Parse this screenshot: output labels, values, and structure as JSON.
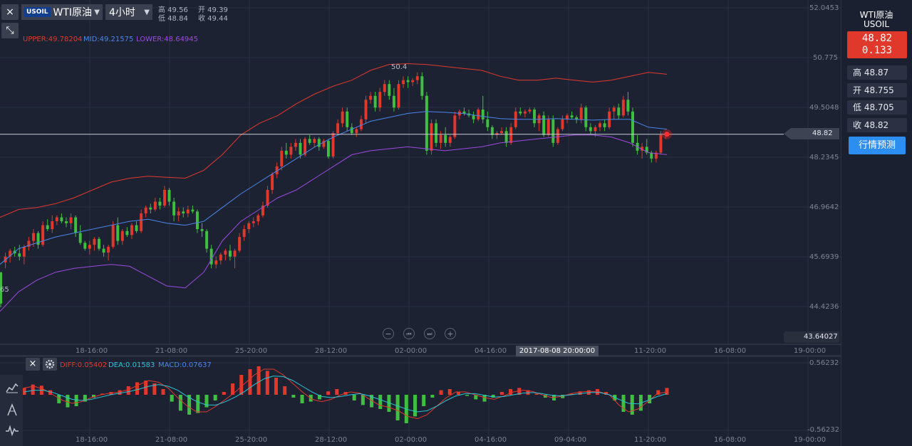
{
  "toolbar": {
    "close_label": "×",
    "shrink_label": "⤡",
    "symbol_badge": "USOIL",
    "symbol_name": "WTI原油",
    "period_label": "4小时",
    "dropdown_caret": "▼",
    "high": "高 49.56",
    "low": "低 48.84",
    "open": "开 49.39",
    "close": "收 49.44"
  },
  "indicator": {
    "upper": "UPPER:49.78204",
    "mid": "MID:49.21575",
    "lower": "LOWER:48.64945",
    "upper_color": "#e0392c",
    "mid_color": "#4a86e8",
    "lower_color": "#9b4ae0"
  },
  "right_panel": {
    "title": "WTI原油",
    "symbol": "USOIL",
    "price": "48.82",
    "change": "0.133",
    "high": "高 48.87",
    "open": "开 48.755",
    "low": "低 48.705",
    "close": "收 48.82",
    "predict_button": "行情预测"
  },
  "price_axis": {
    "labels": [
      "52.0453",
      "50.775",
      "49.5048",
      "48.2345",
      "46.9642",
      "45.6939",
      "44.4236"
    ],
    "current_price": "48.82",
    "bottom_value": "43.64027",
    "max_label": "50.4",
    "left_cut_label": "65"
  },
  "time_axis": {
    "labels": [
      "18-16:00",
      "21-08:00",
      "25-20:00",
      "28-12:00",
      "02-00:00",
      "04-16:00",
      "09-04:00",
      "11-20:00",
      "16-08:00",
      "19-00:00"
    ],
    "crosshair_time": "2017-08-08 20:00:00"
  },
  "navigation": {
    "zoom_out": "−",
    "prev": "⏮",
    "next": "⏭",
    "zoom_in": "+"
  },
  "macd": {
    "close_label": "×",
    "settings_icon": "gear-icon",
    "diff": "DIFF:0.05402",
    "dea": "DEA:0.01583",
    "macd": "MACD:0.07637",
    "diff_color": "#e0392c",
    "dea_color": "#2bc4d4",
    "macd_color": "#4a86e8",
    "top_value": "0.56232",
    "bottom_value": "-0.56232"
  },
  "side_tools": {
    "chart_icon": "chart-icon",
    "draw_icon": "draw-icon",
    "indicator_icon": "indicator-icon"
  },
  "chart_data": {
    "type": "candlestick",
    "up_color": "#e0392c",
    "down_color": "#3fbf3f",
    "ylim": [
      43.64027,
      52.0453
    ],
    "y_ticks": [
      52.0453,
      50.775,
      49.5048,
      48.2345,
      46.9642,
      45.6939,
      44.4236
    ],
    "x_tick_labels": [
      "18-16:00",
      "21-08:00",
      "25-20:00",
      "28-12:00",
      "02-00:00",
      "04-16:00",
      "09-04:00",
      "11-20:00",
      "16-08:00",
      "19-00:00"
    ],
    "current_price": 48.82,
    "max_price": 50.4,
    "ohlc": [
      [
        45.3,
        45.3,
        44.4,
        44.5
      ],
      [
        45.55,
        45.8,
        45.4,
        45.7
      ],
      [
        45.7,
        45.9,
        45.55,
        45.85
      ],
      [
        45.85,
        45.95,
        45.7,
        45.78
      ],
      [
        45.78,
        46.0,
        45.6,
        45.7
      ],
      [
        45.7,
        46.0,
        45.5,
        45.95
      ],
      [
        45.95,
        46.2,
        45.85,
        46.1
      ],
      [
        46.1,
        46.4,
        45.95,
        46.3
      ],
      [
        46.3,
        46.35,
        45.9,
        46.0
      ],
      [
        46.0,
        46.6,
        45.95,
        46.5
      ],
      [
        46.5,
        46.65,
        46.35,
        46.4
      ],
      [
        46.4,
        46.75,
        46.3,
        46.6
      ],
      [
        46.6,
        46.75,
        46.5,
        46.7
      ],
      [
        46.7,
        46.8,
        46.55,
        46.6
      ],
      [
        46.6,
        46.7,
        46.45,
        46.55
      ],
      [
        46.55,
        46.8,
        46.4,
        46.7
      ],
      [
        46.7,
        46.75,
        46.2,
        46.3
      ],
      [
        46.3,
        46.5,
        46.0,
        46.05
      ],
      [
        46.05,
        46.1,
        45.85,
        45.9
      ],
      [
        45.9,
        46.1,
        45.75,
        46.0
      ],
      [
        46.0,
        46.2,
        45.85,
        46.15
      ],
      [
        46.15,
        46.2,
        45.85,
        45.9
      ],
      [
        45.9,
        46.0,
        45.7,
        45.8
      ],
      [
        45.8,
        46.0,
        45.6,
        45.95
      ],
      [
        45.95,
        46.6,
        45.9,
        46.5
      ],
      [
        46.5,
        46.7,
        46.0,
        46.1
      ],
      [
        46.1,
        46.4,
        46.0,
        46.35
      ],
      [
        46.35,
        46.45,
        46.2,
        46.25
      ],
      [
        46.25,
        46.55,
        46.15,
        46.5
      ],
      [
        46.5,
        46.6,
        46.3,
        46.35
      ],
      [
        46.35,
        46.9,
        46.3,
        46.8
      ],
      [
        46.8,
        47.0,
        46.7,
        46.95
      ],
      [
        46.95,
        47.05,
        46.8,
        46.9
      ],
      [
        46.9,
        47.2,
        46.85,
        47.1
      ],
      [
        47.1,
        47.2,
        46.9,
        47.0
      ],
      [
        47.0,
        47.5,
        46.95,
        47.4
      ],
      [
        47.4,
        47.45,
        47.0,
        47.1
      ],
      [
        47.1,
        47.2,
        46.6,
        46.75
      ],
      [
        46.75,
        46.95,
        46.6,
        46.85
      ],
      [
        46.85,
        46.95,
        46.7,
        46.8
      ],
      [
        46.8,
        47.0,
        46.7,
        46.9
      ],
      [
        46.9,
        47.0,
        46.8,
        46.85
      ],
      [
        46.85,
        46.9,
        46.3,
        46.4
      ],
      [
        46.4,
        46.55,
        46.2,
        46.35
      ],
      [
        46.35,
        46.4,
        45.8,
        45.9
      ],
      [
        45.9,
        46.0,
        45.4,
        45.5
      ],
      [
        45.5,
        45.7,
        45.4,
        45.6
      ],
      [
        45.6,
        45.8,
        45.5,
        45.75
      ],
      [
        45.75,
        45.9,
        45.6,
        45.85
      ],
      [
        45.85,
        46.0,
        45.6,
        45.7
      ],
      [
        45.7,
        45.9,
        45.4,
        45.85
      ],
      [
        45.85,
        46.3,
        45.8,
        46.2
      ],
      [
        46.2,
        46.5,
        46.1,
        46.4
      ],
      [
        46.4,
        46.6,
        46.3,
        46.55
      ],
      [
        46.55,
        46.7,
        46.45,
        46.6
      ],
      [
        46.6,
        46.8,
        46.5,
        46.75
      ],
      [
        46.75,
        47.1,
        46.7,
        47.0
      ],
      [
        47.0,
        47.5,
        46.95,
        47.4
      ],
      [
        47.4,
        47.85,
        47.3,
        47.8
      ],
      [
        47.8,
        48.1,
        47.7,
        48.0
      ],
      [
        48.0,
        48.5,
        47.9,
        48.4
      ],
      [
        48.4,
        48.6,
        48.2,
        48.3
      ],
      [
        48.3,
        48.6,
        48.2,
        48.5
      ],
      [
        48.5,
        48.7,
        48.4,
        48.6
      ],
      [
        48.6,
        48.7,
        48.2,
        48.3
      ],
      [
        48.3,
        48.75,
        48.25,
        48.7
      ],
      [
        48.7,
        48.8,
        48.55,
        48.6
      ],
      [
        48.6,
        48.75,
        48.5,
        48.7
      ],
      [
        48.7,
        48.75,
        48.4,
        48.5
      ],
      [
        48.5,
        48.7,
        48.45,
        48.65
      ],
      [
        48.65,
        48.7,
        48.2,
        48.25
      ],
      [
        48.25,
        48.9,
        48.2,
        48.85
      ],
      [
        48.85,
        49.2,
        48.8,
        49.1
      ],
      [
        49.1,
        49.5,
        49.0,
        49.4
      ],
      [
        49.4,
        49.5,
        48.9,
        49.0
      ],
      [
        49.0,
        49.1,
        48.8,
        48.85
      ],
      [
        48.85,
        49.0,
        48.75,
        48.95
      ],
      [
        48.95,
        49.3,
        48.9,
        49.2
      ],
      [
        49.2,
        49.8,
        49.1,
        49.7
      ],
      [
        49.7,
        49.9,
        49.6,
        49.8
      ],
      [
        49.8,
        49.9,
        49.4,
        49.5
      ],
      [
        49.5,
        50.0,
        49.4,
        49.9
      ],
      [
        49.9,
        50.2,
        49.8,
        50.1
      ],
      [
        50.1,
        50.2,
        49.7,
        49.8
      ],
      [
        49.8,
        50.0,
        49.4,
        49.5
      ],
      [
        49.5,
        50.2,
        49.45,
        50.1
      ],
      [
        50.1,
        50.3,
        50.0,
        50.2
      ],
      [
        50.2,
        50.3,
        50.0,
        50.15
      ],
      [
        50.15,
        50.25,
        50.05,
        50.2
      ],
      [
        50.2,
        50.4,
        50.1,
        50.3
      ],
      [
        50.3,
        50.4,
        49.7,
        49.8
      ],
      [
        49.8,
        49.9,
        48.3,
        48.4
      ],
      [
        48.4,
        49.2,
        48.3,
        49.1
      ],
      [
        49.1,
        49.2,
        48.5,
        48.6
      ],
      [
        48.6,
        48.9,
        48.45,
        48.8
      ],
      [
        48.8,
        49.0,
        48.5,
        48.6
      ],
      [
        48.6,
        48.8,
        48.5,
        48.75
      ],
      [
        48.75,
        49.4,
        48.7,
        49.3
      ],
      [
        49.3,
        49.45,
        49.2,
        49.4
      ],
      [
        49.4,
        49.5,
        49.3,
        49.35
      ],
      [
        49.35,
        49.45,
        49.25,
        49.3
      ],
      [
        49.3,
        49.4,
        49.1,
        49.2
      ],
      [
        49.2,
        49.5,
        49.15,
        49.45
      ],
      [
        49.45,
        49.8,
        49.1,
        49.2
      ],
      [
        49.2,
        49.4,
        48.9,
        49.0
      ],
      [
        49.0,
        49.05,
        48.7,
        48.8
      ],
      [
        48.8,
        48.9,
        48.7,
        48.85
      ],
      [
        48.85,
        49.0,
        48.8,
        48.9
      ],
      [
        48.9,
        49.0,
        48.5,
        48.6
      ],
      [
        48.6,
        49.1,
        48.55,
        49.0
      ],
      [
        49.0,
        49.5,
        48.95,
        49.4
      ],
      [
        49.4,
        49.5,
        49.3,
        49.35
      ],
      [
        49.35,
        49.45,
        49.25,
        49.4
      ],
      [
        49.4,
        49.5,
        49.35,
        49.45
      ],
      [
        49.45,
        49.5,
        49.0,
        49.1
      ],
      [
        49.1,
        49.35,
        48.9,
        49.3
      ],
      [
        49.3,
        49.4,
        48.75,
        48.8
      ],
      [
        48.8,
        49.3,
        48.75,
        49.2
      ],
      [
        49.2,
        49.3,
        48.5,
        48.6
      ],
      [
        48.6,
        49.0,
        48.55,
        48.95
      ],
      [
        48.95,
        49.3,
        48.9,
        49.2
      ],
      [
        49.2,
        49.35,
        49.1,
        49.3
      ],
      [
        49.3,
        49.4,
        49.2,
        49.25
      ],
      [
        49.25,
        49.3,
        49.1,
        49.2
      ],
      [
        49.2,
        49.6,
        49.1,
        49.5
      ],
      [
        49.5,
        49.55,
        48.9,
        49.0
      ],
      [
        49.0,
        49.1,
        48.8,
        48.9
      ],
      [
        48.9,
        49.05,
        48.75,
        49.0
      ],
      [
        49.0,
        49.15,
        48.9,
        49.1
      ],
      [
        49.1,
        49.2,
        48.9,
        49.0
      ],
      [
        49.0,
        49.5,
        48.95,
        49.4
      ],
      [
        49.4,
        49.55,
        49.2,
        49.5
      ],
      [
        49.5,
        49.6,
        49.2,
        49.3
      ],
      [
        49.3,
        49.8,
        49.25,
        49.7
      ],
      [
        49.7,
        49.9,
        49.3,
        49.4
      ],
      [
        49.4,
        49.5,
        48.5,
        48.6
      ],
      [
        48.6,
        48.8,
        48.3,
        48.4
      ],
      [
        48.4,
        48.6,
        48.2,
        48.5
      ],
      [
        48.5,
        48.7,
        48.3,
        48.35
      ],
      [
        48.35,
        48.4,
        48.1,
        48.2
      ],
      [
        48.2,
        48.4,
        48.1,
        48.35
      ],
      [
        48.35,
        48.9,
        48.3,
        48.8
      ],
      [
        48.8,
        48.87,
        48.7,
        48.82
      ]
    ],
    "bollinger": {
      "upper": [
        46.7,
        46.9,
        46.95,
        47.05,
        47.2,
        47.4,
        47.6,
        47.7,
        47.75,
        47.72,
        47.7,
        47.9,
        48.3,
        48.8,
        49.1,
        49.3,
        49.6,
        49.85,
        50.05,
        50.2,
        50.45,
        50.6,
        50.62,
        50.6,
        50.55,
        50.5,
        50.45,
        50.3,
        50.2,
        50.2,
        50.25,
        50.2,
        50.15,
        50.2,
        50.3,
        50.4,
        50.35
      ],
      "mid": [
        45.5,
        45.9,
        46.05,
        46.2,
        46.3,
        46.4,
        46.5,
        46.6,
        46.65,
        46.55,
        46.5,
        46.6,
        46.95,
        47.3,
        47.6,
        47.9,
        48.2,
        48.5,
        48.75,
        48.95,
        49.15,
        49.25,
        49.35,
        49.4,
        49.38,
        49.35,
        49.28,
        49.22,
        49.2,
        49.2,
        49.22,
        49.2,
        49.18,
        49.2,
        49.2,
        49.0,
        48.95
      ],
      "lower": [
        44.3,
        44.8,
        45.1,
        45.3,
        45.4,
        45.45,
        45.5,
        45.45,
        45.2,
        44.95,
        44.9,
        45.3,
        46.1,
        46.6,
        46.9,
        47.2,
        47.4,
        47.7,
        48.0,
        48.3,
        48.4,
        48.45,
        48.5,
        48.45,
        48.4,
        48.45,
        48.5,
        48.6,
        48.65,
        48.7,
        48.75,
        48.8,
        48.8,
        48.75,
        48.6,
        48.35,
        48.3
      ]
    },
    "macd_series": {
      "hist": [
        0.12,
        0.18,
        0.16,
        0.08,
        -0.15,
        -0.22,
        -0.2,
        -0.12,
        -0.05,
        0.02,
        0.05,
        0.08,
        0.15,
        0.22,
        0.25,
        0.2,
        0.1,
        -0.12,
        -0.28,
        -0.35,
        -0.32,
        -0.22,
        -0.1,
        0.05,
        0.2,
        0.35,
        0.45,
        0.5,
        0.42,
        0.3,
        0.15,
        -0.05,
        -0.15,
        -0.12,
        -0.08,
        0.06,
        0.1,
        0.05,
        -0.1,
        -0.18,
        -0.22,
        -0.25,
        -0.3,
        -0.45,
        -0.5,
        -0.38,
        -0.2,
        -0.05,
        0.08,
        0.1,
        0.05,
        -0.02,
        -0.08,
        -0.12,
        -0.05,
        0.05,
        0.1,
        0.12,
        0.08,
        0.02,
        -0.05,
        -0.1,
        -0.06,
        0.02,
        0.06,
        0.08,
        0.1,
        0.05,
        -0.1,
        -0.3,
        -0.35,
        -0.28,
        -0.15,
        0.08,
        0.12
      ],
      "diff": [
        0.12,
        0.15,
        0.1,
        0.0,
        -0.1,
        -0.15,
        -0.12,
        -0.05,
        0.0,
        0.03,
        0.05,
        0.1,
        0.18,
        0.25,
        0.22,
        0.12,
        -0.05,
        -0.2,
        -0.3,
        -0.3,
        -0.2,
        -0.08,
        0.05,
        0.2,
        0.35,
        0.45,
        0.45,
        0.35,
        0.2,
        0.05,
        -0.08,
        -0.12,
        -0.08,
        0.0,
        0.05,
        0.03,
        -0.08,
        -0.18,
        -0.22,
        -0.28,
        -0.38,
        -0.42,
        -0.35,
        -0.2,
        -0.05,
        0.05,
        0.05,
        0.0,
        -0.05,
        -0.08,
        -0.02,
        0.05,
        0.08,
        0.06,
        0.0,
        -0.05,
        -0.03,
        0.02,
        0.05,
        0.06,
        0.05,
        0.0,
        -0.18,
        -0.3,
        -0.25,
        -0.12,
        0.02,
        0.05
      ],
      "dea": [
        0.05,
        0.08,
        0.08,
        0.04,
        -0.02,
        -0.08,
        -0.1,
        -0.08,
        -0.04,
        0.0,
        0.03,
        0.06,
        0.1,
        0.15,
        0.18,
        0.15,
        0.08,
        -0.03,
        -0.12,
        -0.18,
        -0.18,
        -0.12,
        -0.04,
        0.06,
        0.18,
        0.28,
        0.33,
        0.32,
        0.25,
        0.15,
        0.05,
        -0.03,
        -0.05,
        -0.03,
        0.0,
        0.02,
        -0.02,
        -0.08,
        -0.14,
        -0.2,
        -0.26,
        -0.3,
        -0.28,
        -0.2,
        -0.1,
        -0.02,
        0.02,
        0.02,
        -0.01,
        -0.04,
        -0.03,
        0.0,
        0.03,
        0.04,
        0.02,
        -0.01,
        -0.02,
        0.0,
        0.02,
        0.04,
        0.04,
        0.0,
        -0.08,
        -0.15,
        -0.16,
        -0.1,
        -0.03,
        0.02
      ]
    }
  }
}
